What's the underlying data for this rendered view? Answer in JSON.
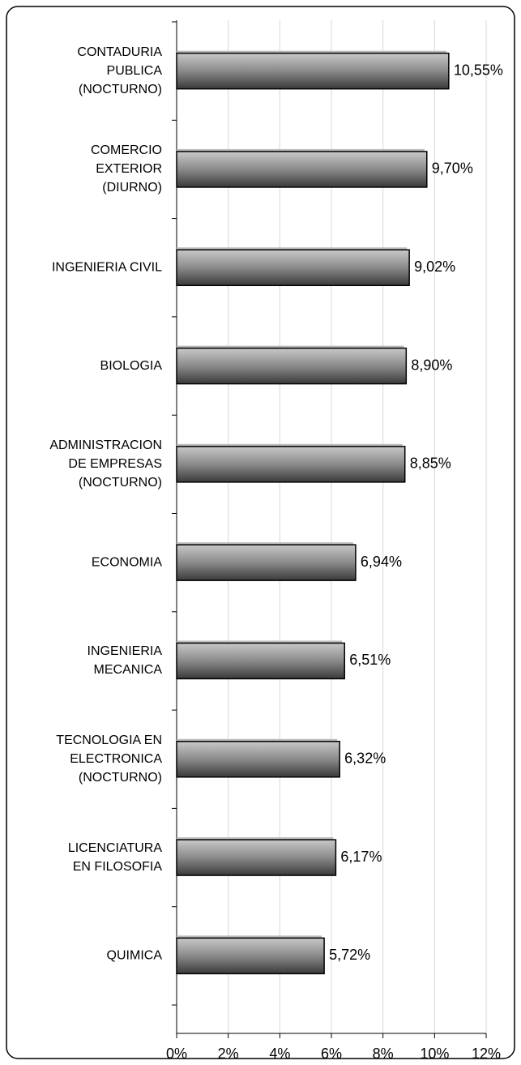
{
  "chart_data": {
    "type": "hbar",
    "categories": [
      [
        "CONTADURIA",
        "PUBLICA",
        "(NOCTURNO)"
      ],
      [
        "COMERCIO",
        "EXTERIOR",
        "(DIURNO)"
      ],
      [
        "INGENIERIA CIVIL"
      ],
      [
        "BIOLOGIA"
      ],
      [
        "ADMINISTRACION",
        "DE EMPRESAS",
        "(NOCTURNO)"
      ],
      [
        "ECONOMIA"
      ],
      [
        "INGENIERIA",
        "MECANICA"
      ],
      [
        "TECNOLOGIA EN",
        "ELECTRONICA",
        "(NOCTURNO)"
      ],
      [
        "LICENCIATURA",
        "EN FILOSOFIA"
      ],
      [
        "QUIMICA"
      ]
    ],
    "values": [
      10.55,
      9.7,
      9.02,
      8.9,
      8.85,
      6.94,
      6.51,
      6.32,
      6.17,
      5.72
    ],
    "value_labels": [
      "10,55%",
      "9,70%",
      "9,02%",
      "8,90%",
      "8,85%",
      "6,94%",
      "6,51%",
      "6,32%",
      "6,17%",
      "5,72%"
    ],
    "color": "#6e6e6e",
    "xlim": [
      0,
      12
    ],
    "xticks": [
      {
        "value": 0,
        "label": "0%"
      },
      {
        "value": 2,
        "label": "2%"
      },
      {
        "value": 4,
        "label": "4%"
      },
      {
        "value": 6,
        "label": "6%"
      },
      {
        "value": 8,
        "label": "8%"
      },
      {
        "value": 10,
        "label": "10%"
      },
      {
        "value": 12,
        "label": "12%"
      }
    ],
    "grid": true
  }
}
